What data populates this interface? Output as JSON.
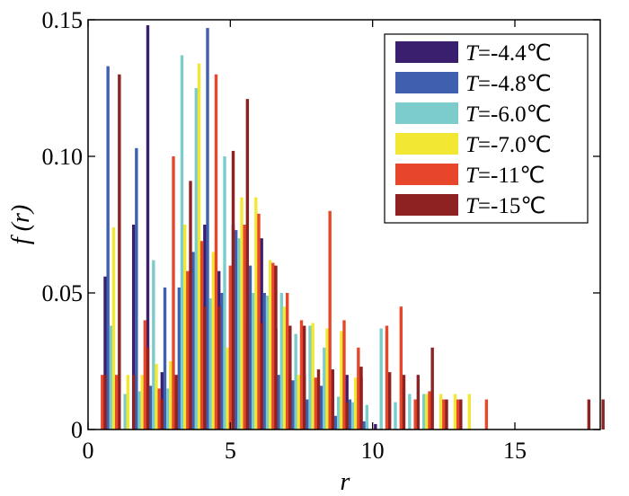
{
  "chart_data": {
    "type": "bar",
    "xlabel": "r",
    "ylabel": "f (r)",
    "xlim": [
      0,
      18
    ],
    "ylim": [
      0,
      0.15
    ],
    "xticks": [
      0,
      5,
      10,
      15
    ],
    "yticks": [
      0,
      0.05,
      0.1,
      0.15
    ],
    "xtick_labels": [
      "0",
      "5",
      "10",
      "15"
    ],
    "ytick_labels": [
      "0",
      "0.05",
      "0.10",
      "0.15"
    ],
    "grid": false,
    "legend_position": "top-right",
    "series": [
      {
        "name": "T=-4.4℃",
        "color": "#3a1f6e",
        "values": [
          [
            0.6,
            0.056
          ],
          [
            1.6,
            0.075
          ],
          [
            2.1,
            0.148
          ],
          [
            2.6,
            0.021
          ],
          [
            3.1,
            0.011
          ],
          [
            3.6,
            0.038
          ],
          [
            4.1,
            0.075
          ],
          [
            4.6,
            0.058
          ],
          [
            5.1,
            0.075
          ],
          [
            5.6,
            0.04
          ],
          [
            6.1,
            0.07
          ],
          [
            6.6,
            0.037
          ],
          [
            7.1,
            0.02
          ],
          [
            7.6,
            0.02
          ],
          [
            8.1,
            0.01
          ],
          [
            8.6,
            0.011
          ],
          [
            9.1,
            0.02
          ],
          [
            9.6,
            0.019
          ],
          [
            10.1,
            0.002
          ]
        ]
      },
      {
        "name": "T=-4.8℃",
        "color": "#3f5faf",
        "values": [
          [
            0.7,
            0.133
          ],
          [
            1.7,
            0.103
          ],
          [
            2.2,
            0.016
          ],
          [
            2.7,
            0.052
          ],
          [
            3.2,
            0.052
          ],
          [
            3.7,
            0.065
          ],
          [
            4.2,
            0.147
          ],
          [
            4.7,
            0.05
          ],
          [
            5.2,
            0.073
          ],
          [
            5.7,
            0.06
          ],
          [
            6.2,
            0.05
          ],
          [
            6.7,
            0.02
          ],
          [
            7.2,
            0.018
          ],
          [
            7.7,
            0.011
          ],
          [
            8.2,
            0.016
          ],
          [
            8.7,
            0.005
          ],
          [
            9.2,
            0.011
          ],
          [
            9.7,
            0.003
          ]
        ]
      },
      {
        "name": "T=-6.0℃",
        "color": "#7ccccc",
        "values": [
          [
            0.8,
            0.038
          ],
          [
            1.3,
            0.013
          ],
          [
            1.8,
            0.014
          ],
          [
            2.3,
            0.062
          ],
          [
            2.8,
            0.015
          ],
          [
            3.3,
            0.137
          ],
          [
            3.8,
            0.125
          ],
          [
            4.3,
            0.048
          ],
          [
            4.8,
            0.1
          ],
          [
            5.3,
            0.07
          ],
          [
            5.8,
            0.05
          ],
          [
            6.3,
            0.049
          ],
          [
            6.8,
            0.05
          ],
          [
            7.3,
            0.035
          ],
          [
            7.8,
            0.038
          ],
          [
            8.3,
            0.03
          ],
          [
            8.8,
            0.012
          ],
          [
            9.3,
            0.01
          ],
          [
            9.8,
            0.009
          ],
          [
            10.3,
            0.037
          ],
          [
            10.8,
            0.01
          ],
          [
            11.3,
            0.013
          ],
          [
            11.8,
            0.013
          ]
        ]
      },
      {
        "name": "T=-7.0℃",
        "color": "#f2e833",
        "values": [
          [
            0.9,
            0.074
          ],
          [
            1.4,
            0.02
          ],
          [
            1.9,
            0.02
          ],
          [
            2.4,
            0.024
          ],
          [
            2.9,
            0.025
          ],
          [
            3.4,
            0.075
          ],
          [
            3.9,
            0.134
          ],
          [
            4.4,
            0.065
          ],
          [
            4.9,
            0.03
          ],
          [
            5.4,
            0.085
          ],
          [
            5.9,
            0.085
          ],
          [
            6.4,
            0.062
          ],
          [
            6.9,
            0.045
          ],
          [
            7.4,
            0.02
          ],
          [
            7.9,
            0.039
          ],
          [
            8.4,
            0.037
          ],
          [
            8.9,
            0.036
          ],
          [
            9.4,
            0.019
          ],
          [
            11.9,
            0.013
          ],
          [
            12.4,
            0.013
          ],
          [
            12.9,
            0.013
          ],
          [
            13.4,
            0.013
          ]
        ]
      },
      {
        "name": "T=-11℃",
        "color": "#e8462a",
        "values": [
          [
            0.5,
            0.02
          ],
          [
            1.0,
            0.02
          ],
          [
            2.0,
            0.04
          ],
          [
            2.5,
            0.015
          ],
          [
            3.0,
            0.1
          ],
          [
            3.5,
            0.058
          ],
          [
            4.0,
            0.069
          ],
          [
            4.5,
            0.13
          ],
          [
            5.0,
            0.06
          ],
          [
            5.5,
            0.075
          ],
          [
            6.0,
            0.079
          ],
          [
            6.5,
            0.061
          ],
          [
            7.0,
            0.05
          ],
          [
            7.5,
            0.04
          ],
          [
            8.0,
            0.019
          ],
          [
            8.5,
            0.08
          ],
          [
            9.0,
            0.04
          ],
          [
            9.5,
            0.03
          ],
          [
            10.5,
            0.038
          ],
          [
            11.0,
            0.045
          ],
          [
            11.5,
            0.011
          ],
          [
            12.0,
            0.014
          ],
          [
            12.5,
            0.011
          ],
          [
            13.0,
            0.011
          ],
          [
            14.0,
            0.011
          ]
        ]
      },
      {
        "name": "T=-15℃",
        "color": "#8e2222",
        "values": [
          [
            0.6,
            0.02
          ],
          [
            1.1,
            0.13
          ],
          [
            1.6,
            0.02
          ],
          [
            2.1,
            0.03
          ],
          [
            2.6,
            0.011
          ],
          [
            3.1,
            0.02
          ],
          [
            3.6,
            0.091
          ],
          [
            4.1,
            0.045
          ],
          [
            4.6,
            0.045
          ],
          [
            5.1,
            0.102
          ],
          [
            5.6,
            0.121
          ],
          [
            6.1,
            0.039
          ],
          [
            6.6,
            0.06
          ],
          [
            7.1,
            0.038
          ],
          [
            7.6,
            0.038
          ],
          [
            8.1,
            0.022
          ],
          [
            8.6,
            0.022
          ],
          [
            9.1,
            0.01
          ],
          [
            9.6,
            0.023
          ],
          [
            10.6,
            0.021
          ],
          [
            11.1,
            0.02
          ],
          [
            11.6,
            0.02
          ],
          [
            12.1,
            0.03
          ],
          [
            12.6,
            0.011
          ],
          [
            13.1,
            0.011
          ],
          [
            17.6,
            0.011
          ],
          [
            18.1,
            0.011
          ]
        ]
      }
    ]
  }
}
